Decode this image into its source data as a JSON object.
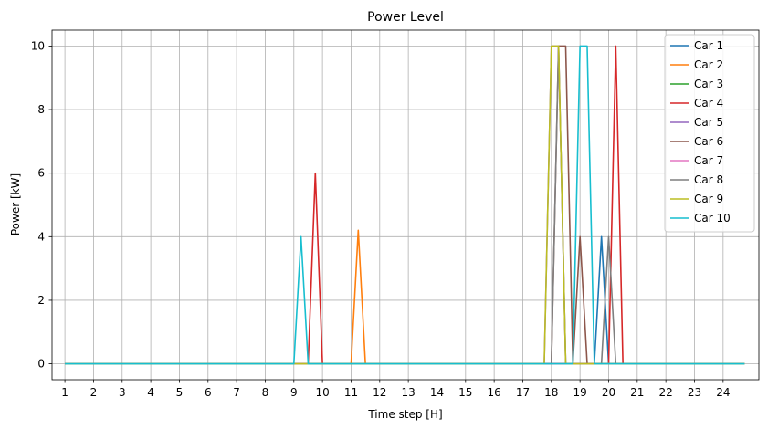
{
  "chart_data": {
    "type": "line",
    "title": "Power Level",
    "xlabel": "Time step [H]",
    "ylabel": "Power [kW]",
    "xlim": [
      0.55,
      25.25
    ],
    "ylim": [
      -0.5,
      10.5
    ],
    "xticks": [
      1,
      2,
      3,
      4,
      5,
      6,
      7,
      8,
      9,
      10,
      11,
      12,
      13,
      14,
      15,
      16,
      17,
      18,
      19,
      20,
      21,
      22,
      23,
      24
    ],
    "yticks": [
      0,
      2,
      4,
      6,
      8,
      10
    ],
    "grid": true,
    "legend_position": "top-right",
    "x": [
      1,
      1.25,
      1.5,
      1.75,
      2,
      2.25,
      2.5,
      2.75,
      3,
      3.25,
      3.5,
      3.75,
      4,
      4.25,
      4.5,
      4.75,
      5,
      5.25,
      5.5,
      5.75,
      6,
      6.25,
      6.5,
      6.75,
      7,
      7.25,
      7.5,
      7.75,
      8,
      8.25,
      8.5,
      8.75,
      9,
      9.25,
      9.5,
      9.75,
      10,
      10.25,
      10.5,
      10.75,
      11,
      11.25,
      11.5,
      11.75,
      12,
      12.25,
      12.5,
      12.75,
      13,
      13.25,
      13.5,
      13.75,
      14,
      14.25,
      14.5,
      14.75,
      15,
      15.25,
      15.5,
      15.75,
      16,
      16.25,
      16.5,
      16.75,
      17,
      17.25,
      17.5,
      17.75,
      18,
      18.25,
      18.5,
      18.75,
      19,
      19.25,
      19.5,
      19.75,
      20,
      20.25,
      20.5,
      20.75,
      21,
      21.25,
      21.5,
      21.75,
      22,
      22.25,
      22.5,
      22.75,
      23,
      23.25,
      23.5,
      23.75,
      24,
      24.25,
      24.5,
      24.75
    ],
    "series": [
      {
        "name": "Car 1",
        "color": "#1f77b4",
        "points": [
          [
            19.5,
            0
          ],
          [
            19.75,
            4
          ],
          [
            20,
            0
          ]
        ]
      },
      {
        "name": "Car 2",
        "color": "#ff7f0e",
        "points": [
          [
            11,
            0
          ],
          [
            11.25,
            4.2
          ],
          [
            11.5,
            0
          ]
        ]
      },
      {
        "name": "Car 3",
        "color": "#2ca02c",
        "points": []
      },
      {
        "name": "Car 4",
        "color": "#d62728",
        "points": [
          [
            9.5,
            0
          ],
          [
            9.75,
            6
          ],
          [
            10,
            0
          ],
          [
            20,
            0
          ],
          [
            20.25,
            10
          ],
          [
            20.5,
            0
          ]
        ]
      },
      {
        "name": "Car 5",
        "color": "#9467bd",
        "points": [
          [
            17.75,
            0
          ],
          [
            18,
            10
          ],
          [
            18.25,
            10
          ],
          [
            18.5,
            0
          ]
        ]
      },
      {
        "name": "Car 6",
        "color": "#8c564b",
        "points": [
          [
            18,
            0
          ],
          [
            18.25,
            10
          ],
          [
            18.5,
            10
          ],
          [
            18.75,
            0
          ],
          [
            19,
            4
          ],
          [
            19.25,
            0
          ]
        ]
      },
      {
        "name": "Car 7",
        "color": "#e377c2",
        "points": []
      },
      {
        "name": "Car 8",
        "color": "#7f7f7f",
        "points": [
          [
            18,
            0
          ],
          [
            18.25,
            10
          ],
          [
            18.5,
            0
          ],
          [
            19.75,
            0
          ],
          [
            20,
            4
          ],
          [
            20.25,
            0
          ]
        ]
      },
      {
        "name": "Car 9",
        "color": "#bcbd22",
        "points": [
          [
            17.75,
            0
          ],
          [
            18,
            10
          ],
          [
            18.25,
            10
          ],
          [
            18.5,
            0
          ]
        ]
      },
      {
        "name": "Car 10",
        "color": "#17becf",
        "points": [
          [
            9,
            0
          ],
          [
            9.25,
            4
          ],
          [
            9.5,
            0
          ],
          [
            18.75,
            0
          ],
          [
            19,
            10
          ],
          [
            19.25,
            10
          ],
          [
            19.5,
            0
          ]
        ]
      }
    ]
  }
}
